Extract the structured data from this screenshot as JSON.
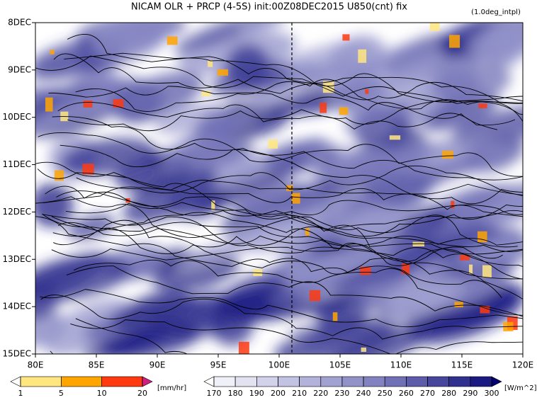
{
  "chart_data": {
    "type": "hovmoller",
    "title": "NICAM  OLR + PRCP (4-5S) init:00Z08DEC2015 U850(cnt) fix",
    "subtitle": "(1.0deg_intpl)",
    "xlim": [
      80,
      120
    ],
    "xticks": [
      {
        "value": 80,
        "label": "80E"
      },
      {
        "value": 85,
        "label": "85E"
      },
      {
        "value": 90,
        "label": "90E"
      },
      {
        "value": 95,
        "label": "95E"
      },
      {
        "value": 100,
        "label": "100E"
      },
      {
        "value": 105,
        "label": "105E"
      },
      {
        "value": 110,
        "label": "110E"
      },
      {
        "value": 115,
        "label": "115E"
      },
      {
        "value": 120,
        "label": "120E"
      }
    ],
    "ylim": [
      15,
      8
    ],
    "yticks": [
      {
        "value": 8,
        "label": "8DEC"
      },
      {
        "value": 9,
        "label": "9DEC"
      },
      {
        "value": 10,
        "label": "10DEC"
      },
      {
        "value": 11,
        "label": "11DEC"
      },
      {
        "value": 12,
        "label": "12DEC"
      },
      {
        "value": 13,
        "label": "13DEC"
      },
      {
        "value": 14,
        "label": "14DEC"
      },
      {
        "value": 15,
        "label": "15DEC"
      }
    ],
    "colorbars": [
      {
        "name": "[mm/hr]",
        "levels": [
          1,
          5,
          10,
          20
        ],
        "colors": [
          "#ffffff",
          "#ffe680",
          "#ffa500",
          "#ff3a10",
          "#d0207f"
        ]
      },
      {
        "name": "[W/m^2]",
        "levels": [
          170,
          180,
          190,
          200,
          210,
          220,
          230,
          240,
          250,
          260,
          270,
          280,
          290,
          300
        ],
        "colors": [
          "#ffffff",
          "#f0f0f8",
          "#e2e2f1",
          "#d2d2ea",
          "#c2c2e2",
          "#b2b2da",
          "#a2a2d2",
          "#9292c9",
          "#8282c0",
          "#7070b6",
          "#5c5caa",
          "#46469c",
          "#30308e",
          "#1a1a82",
          "#000070"
        ]
      }
    ]
  }
}
